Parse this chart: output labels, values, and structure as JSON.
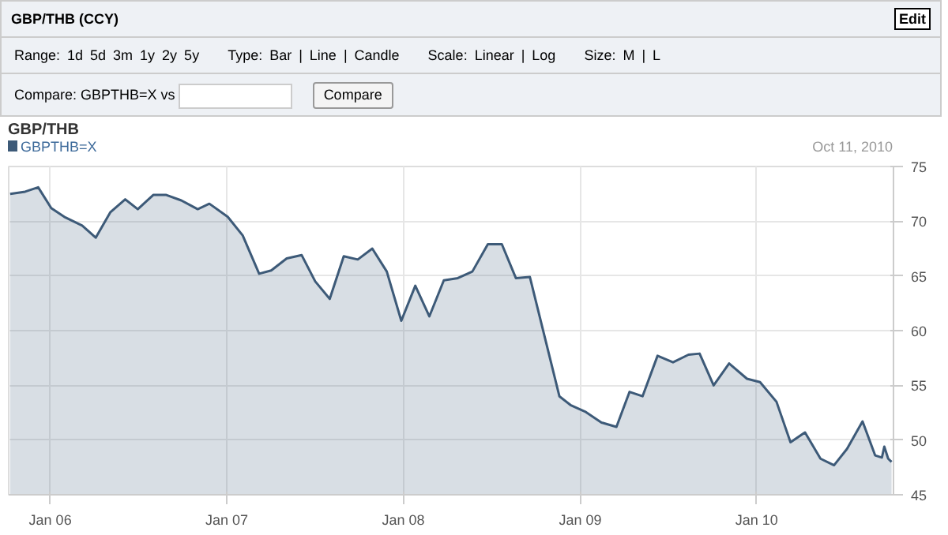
{
  "chart_data": {
    "type": "area",
    "title": "GBP/THB (CCY)",
    "subtitle": "GBP/THB",
    "annotations": [
      "Edit",
      "Range: 1d 5d 3m 1y 2y 5y",
      "Type: Bar | Line | Candle",
      "Scale: Linear | Log",
      "Size: M | L",
      "Compare: GBPTHB=X vs",
      "Compare",
      "Oct 11, 2010"
    ],
    "x": [
      "2005-10-10",
      "2005-11-10",
      "2005-12-07",
      "2006-01-03",
      "2006-01-30",
      "2006-03-08",
      "2006-04-05",
      "2006-05-05",
      "2006-06-05",
      "2006-07-01",
      "2006-08-02",
      "2006-08-29",
      "2006-09-29",
      "2006-11-02",
      "2006-11-26",
      "2007-01-03",
      "2007-02-03",
      "2007-03-09",
      "2007-04-03",
      "2007-05-05",
      "2007-06-05",
      "2007-07-03",
      "2007-08-02",
      "2007-08-31",
      "2007-09-29",
      "2007-10-29",
      "2007-11-28",
      "2007-12-28",
      "2008-01-26",
      "2008-02-24",
      "2008-03-25",
      "2008-04-23",
      "2008-05-23",
      "2008-06-24",
      "2008-07-23",
      "2008-08-21",
      "2008-09-19",
      "2008-11-19",
      "2008-12-12",
      "2009-01-11",
      "2009-02-14",
      "2009-03-17",
      "2009-04-13",
      "2009-05-10",
      "2009-06-10",
      "2009-07-12",
      "2009-08-13",
      "2009-09-05",
      "2009-10-04",
      "2009-11-05",
      "2009-12-12",
      "2010-01-08",
      "2010-02-11",
      "2010-03-12",
      "2010-04-11",
      "2010-05-13",
      "2010-06-10",
      "2010-07-07",
      "2010-08-08",
      "2010-09-03",
      "2010-09-17",
      "2010-09-22",
      "2010-09-30",
      "2010-10-07"
    ],
    "series": [
      {
        "name": "GBPTHB=X",
        "color": "#3d5a78",
        "values": [
          72.5,
          72.7,
          73.1,
          71.2,
          70.4,
          69.6,
          68.5,
          70.8,
          72.0,
          71.1,
          72.4,
          72.4,
          71.9,
          71.1,
          71.6,
          70.4,
          68.7,
          65.2,
          65.5,
          66.6,
          66.9,
          64.5,
          62.9,
          66.8,
          66.5,
          67.5,
          65.4,
          60.9,
          64.1,
          61.3,
          64.6,
          64.8,
          65.4,
          67.9,
          67.9,
          64.8,
          64.9,
          54.0,
          53.2,
          52.6,
          51.6,
          51.2,
          54.4,
          54.0,
          57.7,
          57.1,
          57.8,
          57.9,
          55.0,
          57.0,
          55.6,
          55.3,
          53.5,
          49.8,
          50.7,
          48.3,
          47.7,
          49.2,
          51.7,
          48.6,
          48.4,
          49.4,
          48.3,
          48.0
        ]
      }
    ],
    "xlim": [
      "2005-10-07",
      "2010-10-11"
    ],
    "xticks": [
      {
        "value": "2006-01-01",
        "label": "Jan 06"
      },
      {
        "value": "2007-01-01",
        "label": "Jan 07"
      },
      {
        "value": "2008-01-01",
        "label": "Jan 08"
      },
      {
        "value": "2009-01-01",
        "label": "Jan 09"
      },
      {
        "value": "2010-01-01",
        "label": "Jan 10"
      }
    ],
    "ylim": [
      45,
      75
    ],
    "yticks": [
      45,
      50,
      55,
      60,
      65,
      70,
      75
    ],
    "grid": true,
    "legend": "top left"
  }
}
